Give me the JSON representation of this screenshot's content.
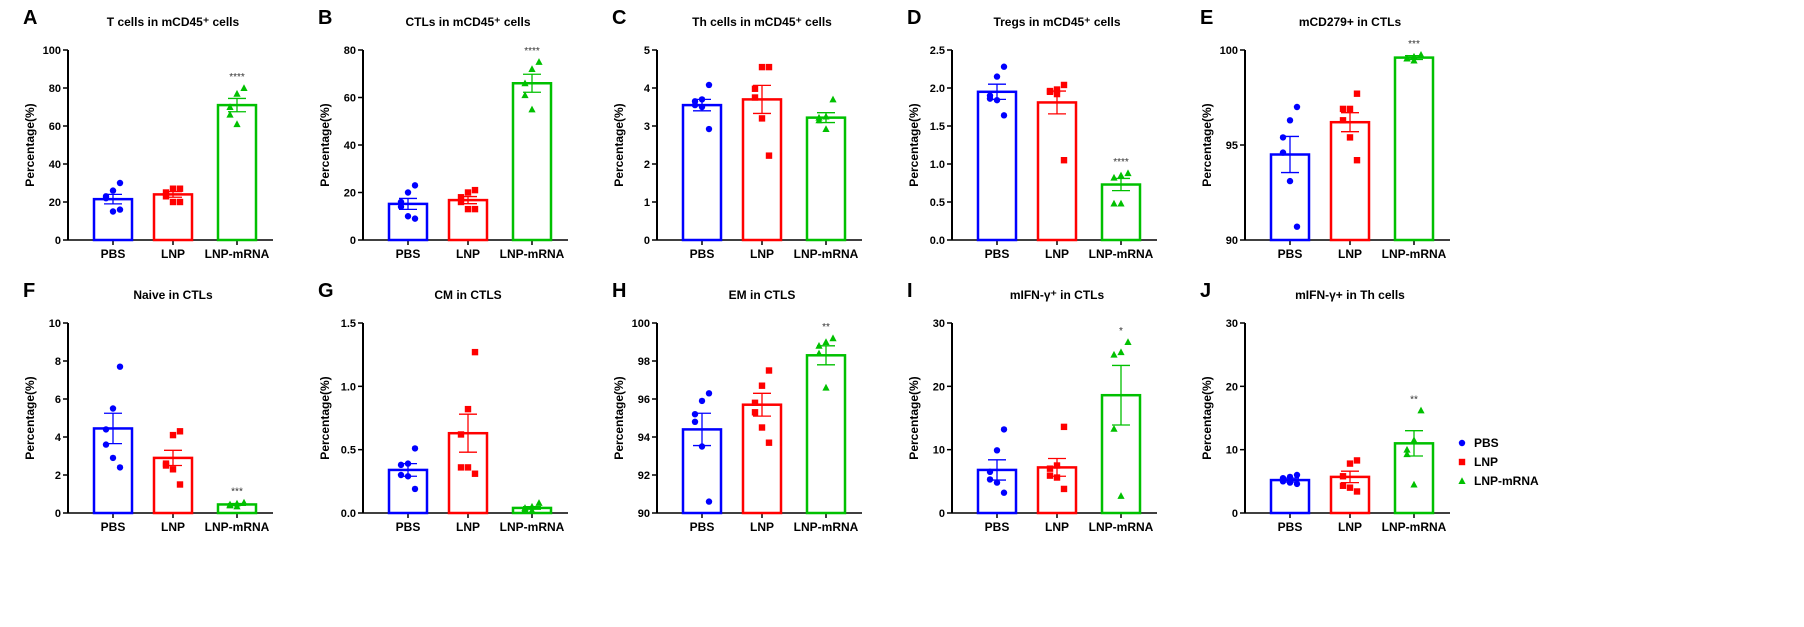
{
  "chart_data": {
    "type": "bar",
    "groups": [
      "PBS",
      "LNP",
      "LNP-mRNA"
    ],
    "colors": {
      "PBS": "#0000ff",
      "LNP": "#ff0000",
      "LNP-mRNA": "#00c000"
    },
    "markers": {
      "PBS": "circle",
      "LNP": "square",
      "LNP-mRNA": "triangle"
    },
    "legend": {
      "placement": "right",
      "entries": [
        "PBS",
        "LNP",
        "LNP-mRNA"
      ]
    },
    "error_bars": "SEM",
    "panels": [
      {
        "letter": "A",
        "title": "T cells  in mCD45⁺ cells",
        "ylabel": "Percentage(%)",
        "ylim": [
          0,
          100
        ],
        "ticks": [
          "0",
          "20",
          "40",
          "60",
          "80",
          "100"
        ],
        "means": [
          21.5,
          24,
          71
        ],
        "sem": [
          2.5,
          1.5,
          3.5
        ],
        "points": [
          [
            30,
            26,
            22,
            23,
            15,
            16
          ],
          [
            27,
            27,
            25,
            23,
            20,
            20
          ],
          [
            80,
            77,
            70,
            66,
            61
          ]
        ],
        "sig": "****"
      },
      {
        "letter": "B",
        "title": "CTLs  in mCD45⁺ cells",
        "ylabel": "Percentage(%)",
        "ylim": [
          0,
          80
        ],
        "ticks": [
          "0",
          "20",
          "40",
          "60",
          "80"
        ],
        "means": [
          15.2,
          16.8,
          66
        ],
        "sem": [
          2.3,
          1.5,
          3.8
        ],
        "points": [
          [
            23,
            20,
            16,
            14,
            10,
            9
          ],
          [
            21,
            20,
            18,
            16,
            13,
            13
          ],
          [
            75,
            72,
            66,
            61,
            55
          ]
        ],
        "sig": "****"
      },
      {
        "letter": "C",
        "title": "Th cells in mCD45⁺ cells",
        "ylabel": "Percentage(%)",
        "ylim": [
          0,
          5
        ],
        "ticks": [
          "0",
          "1",
          "2",
          "3",
          "4",
          "5"
        ],
        "means": [
          3.55,
          3.7,
          3.22
        ],
        "sem": [
          0.15,
          0.37,
          0.13
        ],
        "points": [
          [
            4.08,
            3.7,
            3.65,
            3.55,
            3.5,
            2.92
          ],
          [
            4.55,
            4.55,
            3.98,
            3.75,
            3.2,
            2.22
          ],
          [
            3.7,
            3.25,
            3.22,
            3.15,
            2.92
          ]
        ],
        "sig": ""
      },
      {
        "letter": "D",
        "title": "Tregs in mCD45⁺ cells",
        "ylabel": "Percentage(%)",
        "ylim": [
          0,
          2.5
        ],
        "ticks": [
          "0.0",
          "0.5",
          "1.0",
          "1.5",
          "2.0",
          "2.5"
        ],
        "means": [
          1.95,
          1.81,
          0.73
        ],
        "sem": [
          0.1,
          0.15,
          0.08
        ],
        "points": [
          [
            2.28,
            2.15,
            1.9,
            1.86,
            1.84,
            1.64
          ],
          [
            2.04,
            1.98,
            1.96,
            1.95,
            1.92,
            1.05
          ],
          [
            0.88,
            0.85,
            0.82,
            0.48,
            0.48
          ]
        ],
        "sig": "****"
      },
      {
        "letter": "E",
        "title": "mCD279+ in CTLs",
        "ylabel": "Percentage(%)",
        "ylim": [
          90,
          100
        ],
        "ticks": [
          "90",
          "95",
          "100"
        ],
        "means": [
          94.5,
          96.2,
          99.6
        ],
        "sem": [
          0.95,
          0.5,
          0.1
        ],
        "points": [
          [
            97,
            96.3,
            95.4,
            94.6,
            93.1,
            90.7
          ],
          [
            97.7,
            96.9,
            96.9,
            96.3,
            95.4,
            94.2
          ],
          [
            99.75,
            99.65,
            99.55,
            99.55,
            99.45
          ]
        ],
        "sig": "***"
      },
      {
        "letter": "F",
        "title": "Naive in CTLs",
        "ylabel": "Percentage(%)",
        "ylim": [
          0,
          10
        ],
        "ticks": [
          "0",
          "2",
          "4",
          "6",
          "8",
          "10"
        ],
        "means": [
          4.45,
          2.9,
          0.45
        ],
        "sem": [
          0.8,
          0.4,
          0.05
        ],
        "points": [
          [
            7.7,
            5.5,
            4.4,
            3.6,
            2.9,
            2.4
          ],
          [
            4.3,
            4.1,
            2.6,
            2.5,
            2.3,
            1.5
          ],
          [
            0.55,
            0.5,
            0.45,
            0.4,
            0.35
          ]
        ],
        "sig": "***"
      },
      {
        "letter": "G",
        "title": "CM in CTLS",
        "ylabel": "Percentage(%)",
        "ylim": [
          0,
          1.5
        ],
        "ticks": [
          "0.0",
          "0.5",
          "1.0",
          "1.5"
        ],
        "means": [
          0.34,
          0.63,
          0.04
        ],
        "sem": [
          0.05,
          0.15,
          0.01
        ],
        "points": [
          [
            0.51,
            0.39,
            0.38,
            0.3,
            0.29,
            0.19
          ],
          [
            1.27,
            0.82,
            0.62,
            0.36,
            0.36,
            0.31
          ],
          [
            0.08,
            0.05,
            0.04,
            0.03,
            0.02
          ]
        ],
        "sig": ""
      },
      {
        "letter": "H",
        "title": "EM in CTLS",
        "ylabel": "Percentage(%)",
        "ylim": [
          90,
          100
        ],
        "ticks": [
          "90",
          "92",
          "94",
          "96",
          "98",
          "100"
        ],
        "means": [
          94.4,
          95.7,
          98.3
        ],
        "sem": [
          0.85,
          0.6,
          0.5
        ],
        "points": [
          [
            96.3,
            95.9,
            95.2,
            94.8,
            93.5,
            90.6
          ],
          [
            97.5,
            96.7,
            95.8,
            95.3,
            94.5,
            93.7
          ],
          [
            99.2,
            99.0,
            98.8,
            98.4,
            96.6
          ]
        ],
        "sig": "**"
      },
      {
        "letter": "I",
        "title": "mIFN-γ⁺ in CTLs",
        "ylabel": "Percentage(%)",
        "ylim": [
          0,
          30
        ],
        "ticks": [
          "0",
          "10",
          "20",
          "30"
        ],
        "means": [
          6.8,
          7.2,
          18.6
        ],
        "sem": [
          1.6,
          1.4,
          4.7
        ],
        "points": [
          [
            13.2,
            9.9,
            6.5,
            5.3,
            4.8,
            3.2
          ],
          [
            13.6,
            7.5,
            7.0,
            5.9,
            5.6,
            3.8
          ],
          [
            27,
            25.4,
            25,
            13.3,
            2.7
          ]
        ],
        "sig": "*"
      },
      {
        "letter": "J",
        "title": "mIFN-γ+ in Th cells",
        "ylabel": "Percentage(%)",
        "ylim": [
          0,
          30
        ],
        "ticks": [
          "0",
          "10",
          "20",
          "30"
        ],
        "means": [
          5.2,
          5.7,
          11
        ],
        "sem": [
          0.3,
          0.9,
          2
        ],
        "points": [
          [
            6.0,
            5.7,
            5.5,
            5.0,
            4.8,
            4.6
          ],
          [
            8.3,
            7.8,
            5.8,
            4.3,
            4.0,
            3.4
          ],
          [
            16.2,
            11.5,
            10.0,
            9.3,
            4.5
          ]
        ],
        "sig": "**"
      }
    ]
  }
}
